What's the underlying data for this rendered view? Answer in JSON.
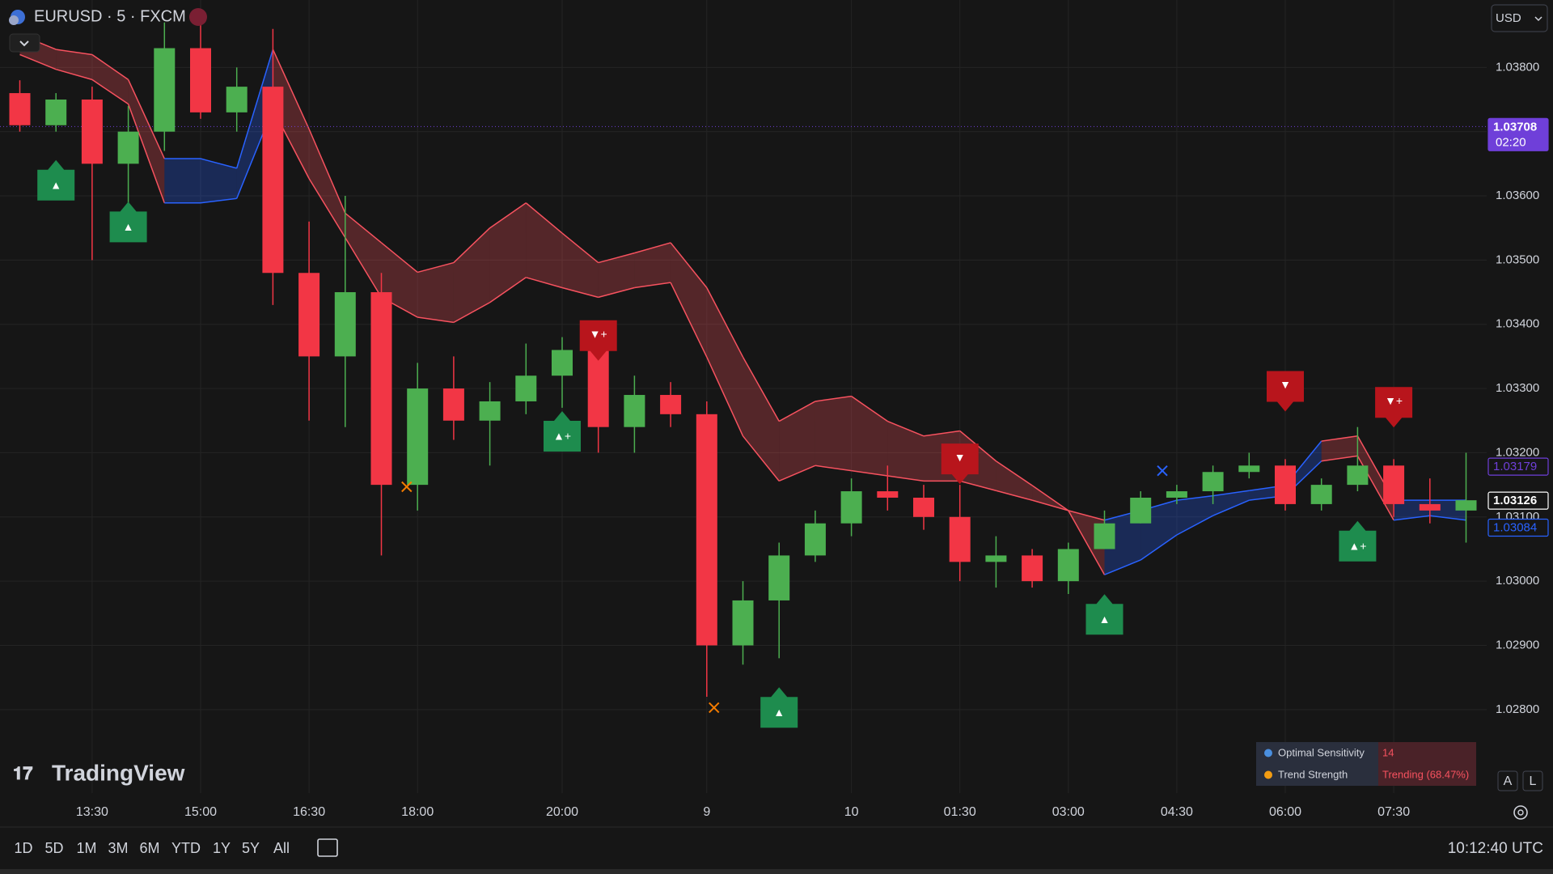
{
  "header": {
    "symbol": "EURUSD · 5 · FXCM",
    "currency": "USD",
    "logo": "TradingView"
  },
  "toolbar": {
    "ranges": [
      "1D",
      "5D",
      "1M",
      "3M",
      "6M",
      "YTD",
      "1Y",
      "5Y",
      "All"
    ],
    "clock": "10:12:40 UTC",
    "buttons": [
      "A",
      "L"
    ]
  },
  "info_table": {
    "rows": [
      [
        "Optimal Sensitivity",
        "14"
      ],
      [
        "Trend Strength",
        "Trending (68.47%)"
      ]
    ]
  },
  "chart_data": {
    "type": "candlestick",
    "categories": [
      null,
      null,
      "13:30",
      null,
      null,
      "15:00",
      null,
      null,
      "16:30",
      null,
      null,
      "18:00",
      null,
      null,
      null,
      "20:00",
      null,
      null,
      null,
      "9",
      null,
      null,
      null,
      "10",
      null,
      null,
      "01:30",
      null,
      null,
      "03:00",
      null,
      null,
      "04:30",
      null,
      null,
      "06:00",
      null,
      null,
      "07:30",
      null,
      null
    ],
    "open": [
      1.0376,
      1.0371,
      1.0375,
      1.0365,
      1.037,
      1.0383,
      1.0373,
      1.0377,
      1.0348,
      1.0335,
      1.0345,
      1.0315,
      1.033,
      1.0325,
      1.0328,
      1.0332,
      1.0336,
      1.0324,
      1.0329,
      1.0326,
      1.029,
      1.0297,
      1.0304,
      1.0309,
      1.0314,
      1.0313,
      1.031,
      1.0303,
      1.0304,
      1.03,
      1.0305,
      1.0309,
      1.0313,
      1.0314,
      1.0317,
      1.0318,
      1.0312,
      1.0315,
      1.0318,
      1.0312,
      1.0311
    ],
    "high": [
      1.0378,
      1.0376,
      1.0377,
      1.0374,
      1.0387,
      1.0387,
      1.038,
      1.0386,
      1.0356,
      1.036,
      1.0348,
      1.0334,
      1.0335,
      1.0331,
      1.0337,
      1.0338,
      1.0337,
      1.0332,
      1.0331,
      1.0328,
      1.03,
      1.0306,
      1.0311,
      1.0316,
      1.0318,
      1.0315,
      1.0315,
      1.0307,
      1.0305,
      1.0306,
      1.0311,
      1.0314,
      1.0315,
      1.0318,
      1.032,
      1.0319,
      1.0316,
      1.0324,
      1.0319,
      1.0316,
      1.032
    ],
    "low": [
      1.037,
      1.037,
      1.035,
      1.0358,
      1.0367,
      1.0372,
      1.037,
      1.0343,
      1.0325,
      1.0324,
      1.0304,
      1.0311,
      1.0322,
      1.0318,
      1.0326,
      1.0327,
      1.032,
      1.032,
      1.0324,
      1.0282,
      1.0287,
      1.0288,
      1.0303,
      1.0307,
      1.0311,
      1.0308,
      1.03,
      1.0299,
      1.0299,
      1.0298,
      1.0305,
      1.0309,
      1.0312,
      1.0312,
      1.0316,
      1.0311,
      1.0311,
      1.0314,
      1.031,
      1.0309,
      1.0306
    ],
    "close": [
      1.0371,
      1.0375,
      1.0365,
      1.037,
      1.0383,
      1.0373,
      1.0377,
      1.0348,
      1.0335,
      1.0345,
      1.0315,
      1.033,
      1.0325,
      1.0328,
      1.0332,
      1.0336,
      1.0324,
      1.0329,
      1.0326,
      1.029,
      1.0297,
      1.0304,
      1.0309,
      1.0314,
      1.0313,
      1.031,
      1.0303,
      1.0304,
      1.03,
      1.0305,
      1.0309,
      1.0313,
      1.0314,
      1.0317,
      1.0318,
      1.0312,
      1.0315,
      1.0318,
      1.0312,
      1.0311,
      1.03126
    ],
    "up_color": "#4caf50",
    "down_color": "#f23645",
    "band": {
      "upper": [
        1.03851,
        1.03828,
        1.0382,
        1.03781,
        1.03658,
        1.03658,
        1.03643,
        1.03828,
        1.03704,
        1.03573,
        1.03527,
        1.03481,
        1.03496,
        1.0355,
        1.03589,
        1.03542,
        1.03496,
        1.03511,
        1.03527,
        1.03457,
        1.03349,
        1.03249,
        1.0328,
        1.03288,
        1.03249,
        1.03226,
        1.03234,
        1.03187,
        1.03149,
        1.0311,
        1.03095,
        1.0311,
        1.03126,
        1.03133,
        1.03141,
        1.03149,
        1.03218,
        1.03226,
        1.03126,
        1.03126,
        1.03126
      ],
      "lower": [
        1.0382,
        1.03797,
        1.03781,
        1.03743,
        1.03589,
        1.03589,
        1.03596,
        1.03735,
        1.03627,
        1.03535,
        1.03442,
        1.03411,
        1.03403,
        1.03434,
        1.03473,
        1.03457,
        1.03442,
        1.03457,
        1.03465,
        1.03349,
        1.03226,
        1.03156,
        1.0318,
        1.03172,
        1.03164,
        1.03156,
        1.03156,
        1.03141,
        1.03126,
        1.0311,
        1.0301,
        1.03033,
        1.03072,
        1.03102,
        1.03126,
        1.03133,
        1.03187,
        1.03195,
        1.03095,
        1.03102,
        1.03095
      ],
      "colors": [
        "#f7525f",
        "#f7525f",
        "#f7525f",
        "#f7525f",
        "#2962ff",
        "#2962ff",
        "#2962ff",
        "#f7525f",
        "#f7525f",
        "#f7525f",
        "#f7525f",
        "#f7525f",
        "#f7525f",
        "#f7525f",
        "#f7525f",
        "#f7525f",
        "#f7525f",
        "#f7525f",
        "#f7525f",
        "#f7525f",
        "#f7525f",
        "#f7525f",
        "#f7525f",
        "#f7525f",
        "#f7525f",
        "#f7525f",
        "#f7525f",
        "#f7525f",
        "#f7525f",
        "#f7525f",
        "#2962ff",
        "#2962ff",
        "#2962ff",
        "#2962ff",
        "#2962ff",
        "#2962ff",
        "#f7525f",
        "#f7525f",
        "#2962ff",
        "#2962ff",
        "#2962ff"
      ]
    },
    "signals": [
      {
        "index": 1,
        "price": 1.03623,
        "label": "▲"
      },
      {
        "index": 3,
        "price": 1.03558,
        "label": "▲"
      },
      {
        "index": 15,
        "price": 1.03232,
        "label": "▲+"
      },
      {
        "index": 16,
        "price": 1.03376,
        "label": "▼+"
      },
      {
        "index": 21,
        "price": 1.02802,
        "label": "▲"
      },
      {
        "index": 26,
        "price": 1.03184,
        "label": "▼"
      },
      {
        "index": 30,
        "price": 1.02947,
        "label": "▲"
      },
      {
        "index": 35,
        "price": 1.03297,
        "label": "▼"
      },
      {
        "index": 37,
        "price": 1.03061,
        "label": "▲+"
      },
      {
        "index": 38,
        "price": 1.03272,
        "label": "▼+"
      }
    ],
    "crosses": [
      {
        "index": 10.7,
        "price": 1.03147,
        "color": "#f57c00"
      },
      {
        "index": 19.2,
        "price": 1.02803,
        "color": "#f57c00"
      },
      {
        "index": 31.6,
        "price": 1.03172,
        "color": "#2962ff"
      }
    ],
    "ylim": [
      1.0267,
      1.03905
    ],
    "yticks": [
      {
        "value": 1.028,
        "label": "1.02800"
      },
      {
        "value": 1.029,
        "label": "1.02900"
      },
      {
        "value": 1.03,
        "label": "1.03000"
      },
      {
        "value": 1.031,
        "label": "1.03100"
      },
      {
        "value": 1.032,
        "label": "1.03200"
      },
      {
        "value": 1.033,
        "label": "1.03300"
      },
      {
        "value": 1.034,
        "label": "1.03400"
      },
      {
        "value": 1.035,
        "label": "1.03500"
      },
      {
        "value": 1.036,
        "label": "1.03600"
      },
      {
        "value": 1.037,
        "label": "1.03700"
      },
      {
        "value": 1.038,
        "label": "1.03800"
      }
    ],
    "grid": true,
    "price_labels": [
      {
        "value": 1.03708,
        "label": "1.03708",
        "sub": "02:20",
        "color": "#6f3fd9",
        "style": "solid"
      },
      {
        "value": 1.03179,
        "label": "1.03179",
        "color": "#6f3fd9",
        "style": "outline"
      },
      {
        "value": 1.03126,
        "label": "1.03126",
        "color": "#ffffff",
        "style": "outline"
      },
      {
        "value": 1.03084,
        "label": "1.03084",
        "color": "#2962ff",
        "style": "outline"
      }
    ]
  }
}
